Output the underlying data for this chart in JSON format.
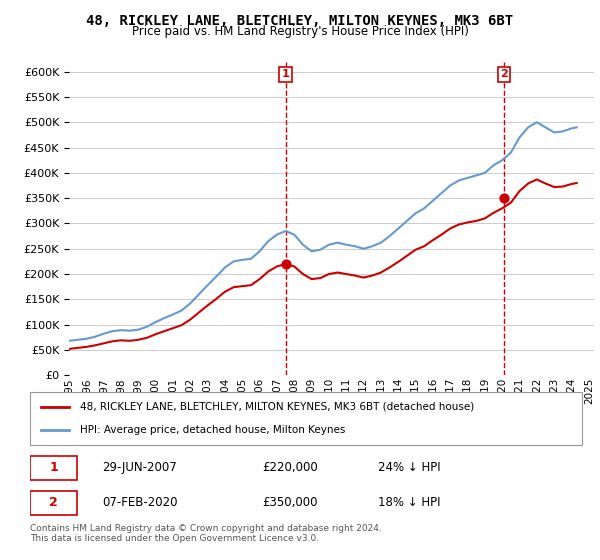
{
  "title": "48, RICKLEY LANE, BLETCHLEY, MILTON KEYNES, MK3 6BT",
  "subtitle": "Price paid vs. HM Land Registry's House Price Index (HPI)",
  "legend_line1": "48, RICKLEY LANE, BLETCHLEY, MILTON KEYNES, MK3 6BT (detached house)",
  "legend_line2": "HPI: Average price, detached house, Milton Keynes",
  "annotation1_label": "1",
  "annotation1_date": "29-JUN-2007",
  "annotation1_price": "£220,000",
  "annotation1_pct": "24% ↓ HPI",
  "annotation2_label": "2",
  "annotation2_date": "07-FEB-2020",
  "annotation2_price": "£350,000",
  "annotation2_pct": "18% ↓ HPI",
  "footnote": "Contains HM Land Registry data © Crown copyright and database right 2024.\nThis data is licensed under the Open Government Licence v3.0.",
  "hpi_color": "#6699cc",
  "price_color": "#cc0000",
  "annotation_color": "#cc0000",
  "vline_color": "#cc0000",
  "ylim": [
    0,
    620000
  ],
  "yticks": [
    0,
    50000,
    100000,
    150000,
    200000,
    250000,
    300000,
    350000,
    400000,
    450000,
    500000,
    550000,
    600000
  ],
  "sale1_x": 2007.5,
  "sale1_y": 220000,
  "sale2_x": 2020.1,
  "sale2_y": 350000,
  "hpi_years": [
    1995,
    1995.5,
    1996,
    1996.5,
    1997,
    1997.5,
    1998,
    1998.5,
    1999,
    1999.5,
    2000,
    2000.5,
    2001,
    2001.5,
    2002,
    2002.5,
    2003,
    2003.5,
    2004,
    2004.5,
    2005,
    2005.5,
    2006,
    2006.5,
    2007,
    2007.5,
    2008,
    2008.5,
    2009,
    2009.5,
    2010,
    2010.5,
    2011,
    2011.5,
    2012,
    2012.5,
    2013,
    2013.5,
    2014,
    2014.5,
    2015,
    2015.5,
    2016,
    2016.5,
    2017,
    2017.5,
    2018,
    2018.5,
    2019,
    2019.5,
    2020,
    2020.5,
    2021,
    2021.5,
    2022,
    2022.5,
    2023,
    2023.5,
    2024,
    2024.3
  ],
  "hpi_values": [
    68000,
    70000,
    72000,
    76000,
    82000,
    87000,
    89000,
    88000,
    90000,
    96000,
    105000,
    113000,
    120000,
    128000,
    142000,
    160000,
    178000,
    195000,
    213000,
    225000,
    228000,
    230000,
    245000,
    265000,
    278000,
    285000,
    278000,
    258000,
    245000,
    248000,
    258000,
    262000,
    258000,
    255000,
    250000,
    255000,
    262000,
    275000,
    290000,
    305000,
    320000,
    330000,
    345000,
    360000,
    375000,
    385000,
    390000,
    395000,
    400000,
    415000,
    425000,
    440000,
    470000,
    490000,
    500000,
    490000,
    480000,
    482000,
    488000,
    490000
  ],
  "price_years": [
    1995,
    1995.5,
    1996,
    1996.5,
    1997,
    1997.5,
    1998,
    1998.5,
    1999,
    1999.5,
    2000,
    2000.5,
    2001,
    2001.5,
    2002,
    2002.5,
    2003,
    2003.5,
    2004,
    2004.5,
    2005,
    2005.5,
    2006,
    2006.5,
    2007,
    2007.5,
    2008,
    2008.5,
    2009,
    2009.5,
    2010,
    2010.5,
    2011,
    2011.5,
    2012,
    2012.5,
    2013,
    2013.5,
    2014,
    2014.5,
    2015,
    2015.5,
    2016,
    2016.5,
    2017,
    2017.5,
    2018,
    2018.5,
    2019,
    2019.5,
    2020,
    2020.5,
    2021,
    2021.5,
    2022,
    2022.5,
    2023,
    2023.5,
    2024,
    2024.3
  ],
  "price_values": [
    52000,
    54000,
    56000,
    59000,
    63000,
    67000,
    69000,
    68000,
    70000,
    74000,
    81000,
    87000,
    93000,
    99000,
    110000,
    124000,
    138000,
    151000,
    165000,
    174000,
    176000,
    178000,
    190000,
    205000,
    215000,
    220000,
    215000,
    200000,
    190000,
    192000,
    200000,
    203000,
    200000,
    197000,
    193000,
    197000,
    203000,
    213000,
    224000,
    236000,
    248000,
    255000,
    267000,
    278000,
    290000,
    298000,
    302000,
    305000,
    310000,
    321000,
    330000,
    341000,
    364000,
    379000,
    387000,
    379000,
    372000,
    373000,
    378000,
    380000
  ],
  "xtick_years": [
    1995,
    1996,
    1997,
    1998,
    1999,
    2000,
    2001,
    2002,
    2003,
    2004,
    2005,
    2006,
    2007,
    2008,
    2009,
    2010,
    2011,
    2012,
    2013,
    2014,
    2015,
    2016,
    2017,
    2018,
    2019,
    2020,
    2021,
    2022,
    2023,
    2024,
    2025
  ]
}
